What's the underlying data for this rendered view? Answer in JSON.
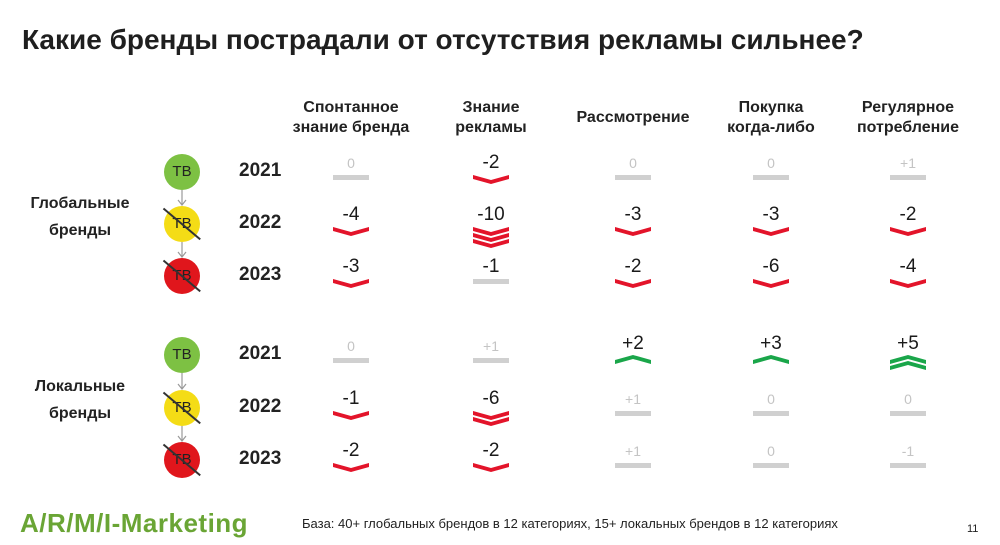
{
  "title": "Какие бренды пострадали от отсутствия рекламы сильнее?",
  "columns": [
    "Спонтанное знание бренда",
    "Знание рекламы",
    "Рассмотрение",
    "Покупка когда-либо",
    "Регулярное потребление"
  ],
  "columns_lines": [
    [
      "Спонтанное",
      "знание бренда"
    ],
    [
      "Знание",
      "рекламы"
    ],
    [
      "Рассмотрение"
    ],
    [
      "Покупка",
      "когда-либо"
    ],
    [
      "Регулярное",
      "потребление"
    ]
  ],
  "groups": [
    {
      "label_lines": [
        "Глобальные",
        "бренды"
      ],
      "rows": [
        {
          "year": "2021",
          "tv_label": "ТВ",
          "tv_state": "green",
          "tv_struck": false,
          "cells": [
            {
              "text": "0",
              "dir": "flat",
              "level": 0
            },
            {
              "text": "-2",
              "dir": "down",
              "level": 1
            },
            {
              "text": "0",
              "dir": "flat",
              "level": 0
            },
            {
              "text": "0",
              "dir": "flat",
              "level": 0
            },
            {
              "text": "+1",
              "dir": "flat",
              "level": 0
            }
          ]
        },
        {
          "year": "2022",
          "tv_label": "ТВ",
          "tv_state": "yellow",
          "tv_struck": true,
          "cells": [
            {
              "text": "-4",
              "dir": "down",
              "level": 1
            },
            {
              "text": "-10",
              "dir": "down",
              "level": 3
            },
            {
              "text": "-3",
              "dir": "down",
              "level": 1
            },
            {
              "text": "-3",
              "dir": "down",
              "level": 1
            },
            {
              "text": "-2",
              "dir": "down",
              "level": 1
            }
          ]
        },
        {
          "year": "2023",
          "tv_label": "ТВ",
          "tv_state": "red",
          "tv_struck": true,
          "cells": [
            {
              "text": "-3",
              "dir": "down",
              "level": 1
            },
            {
              "text": "-1",
              "dir": "flat",
              "level": 0,
              "bold_value": true
            },
            {
              "text": "-2",
              "dir": "down",
              "level": 1
            },
            {
              "text": "-6",
              "dir": "down",
              "level": 1
            },
            {
              "text": "-4",
              "dir": "down",
              "level": 1
            }
          ]
        }
      ]
    },
    {
      "label_lines": [
        "Локальные",
        "бренды"
      ],
      "rows": [
        {
          "year": "2021",
          "tv_label": "ТВ",
          "tv_state": "green",
          "tv_struck": false,
          "cells": [
            {
              "text": "0",
              "dir": "flat",
              "level": 0
            },
            {
              "text": "+1",
              "dir": "flat",
              "level": 0
            },
            {
              "text": "+2",
              "dir": "up",
              "level": 1
            },
            {
              "text": "+3",
              "dir": "up",
              "level": 1
            },
            {
              "text": "+5",
              "dir": "up",
              "level": 2
            }
          ]
        },
        {
          "year": "2022",
          "tv_label": "ТВ",
          "tv_state": "yellow",
          "tv_struck": true,
          "cells": [
            {
              "text": "-1",
              "dir": "down",
              "level": 1
            },
            {
              "text": "-6",
              "dir": "down",
              "level": 2
            },
            {
              "text": "+1",
              "dir": "flat",
              "level": 0
            },
            {
              "text": "0",
              "dir": "flat",
              "level": 0
            },
            {
              "text": "0",
              "dir": "flat",
              "level": 0
            }
          ]
        },
        {
          "year": "2023",
          "tv_label": "ТВ",
          "tv_state": "red",
          "tv_struck": true,
          "cells": [
            {
              "text": "-2",
              "dir": "down",
              "level": 1
            },
            {
              "text": "-2",
              "dir": "down",
              "level": 1
            },
            {
              "text": "+1",
              "dir": "flat",
              "level": 0
            },
            {
              "text": "0",
              "dir": "flat",
              "level": 0
            },
            {
              "text": "-1",
              "dir": "flat",
              "level": 0
            }
          ]
        }
      ]
    }
  ],
  "colors": {
    "decline": "#e3142a",
    "growth": "#1aa64a",
    "neutral": "#d0d0d0",
    "tv_green": "#7dc143",
    "tv_yellow": "#f4dc16",
    "tv_red": "#e0161c",
    "logo": "#6aa535"
  },
  "footer": {
    "logo": "A/R/M/I-Marketing",
    "base": "База: 40+ глобальных брендов в 12 категориях, 15+ локальных брендов в 12 категориях",
    "page": "11"
  }
}
